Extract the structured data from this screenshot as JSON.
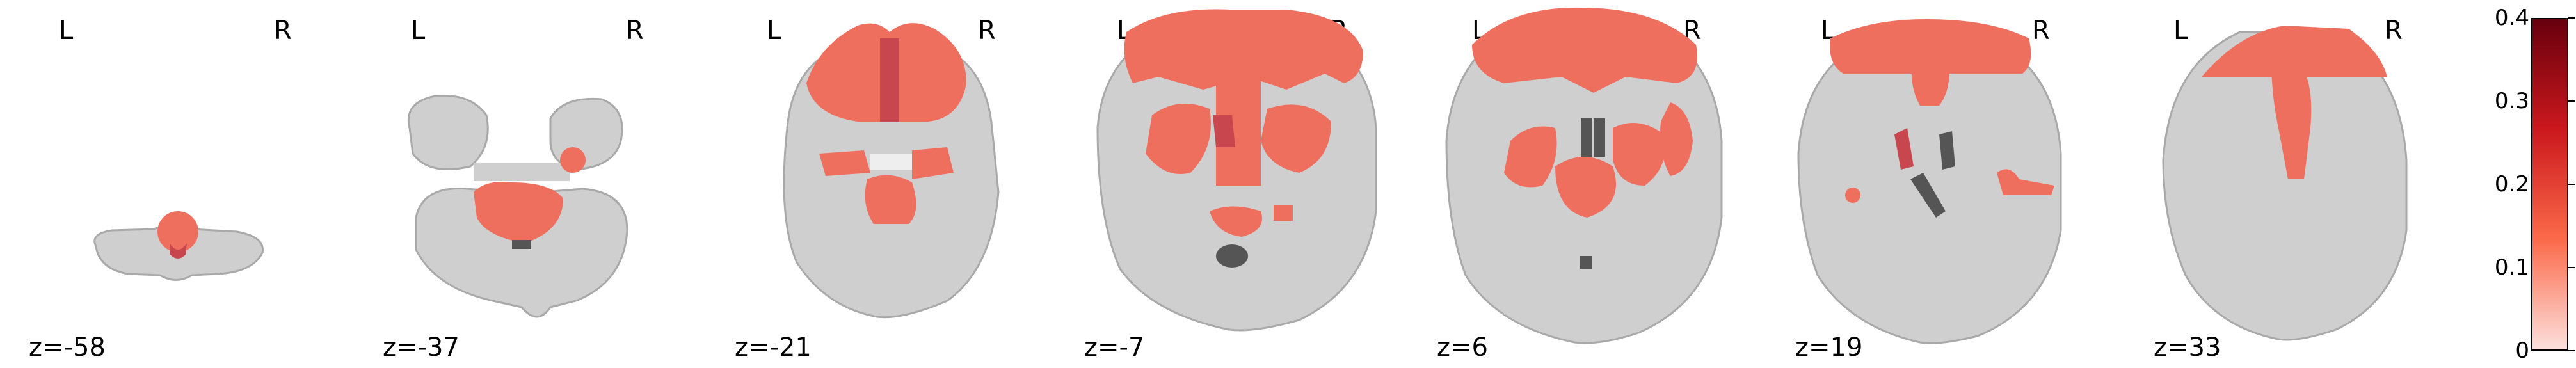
{
  "colors": {
    "brain": "#cfcfcf",
    "brain_edge": "#a9a9a9",
    "white_matter": "#eeeeee",
    "overlay": "#ef6f5f",
    "overlay_dark": "#c8464d",
    "ventricle": "#555555"
  },
  "panels": [
    {
      "z": "z=-58",
      "left": "L",
      "right": "R"
    },
    {
      "z": "z=-37",
      "left": "L",
      "right": "R"
    },
    {
      "z": "z=-21",
      "left": "L",
      "right": "R"
    },
    {
      "z": "z=-7",
      "left": "L",
      "right": "R"
    },
    {
      "z": "z=6",
      "left": "L",
      "right": "R"
    },
    {
      "z": "z=19",
      "left": "L",
      "right": "R"
    },
    {
      "z": "z=33",
      "left": "L",
      "right": "R"
    }
  ],
  "colorbar": {
    "ticks": [
      "0.4",
      "0.3",
      "0.2",
      "0.1",
      "0"
    ],
    "min": 0,
    "max": 0.4,
    "colors": [
      "#fde0dd",
      "#fb6a4a",
      "#cb181d",
      "#67000d"
    ]
  }
}
